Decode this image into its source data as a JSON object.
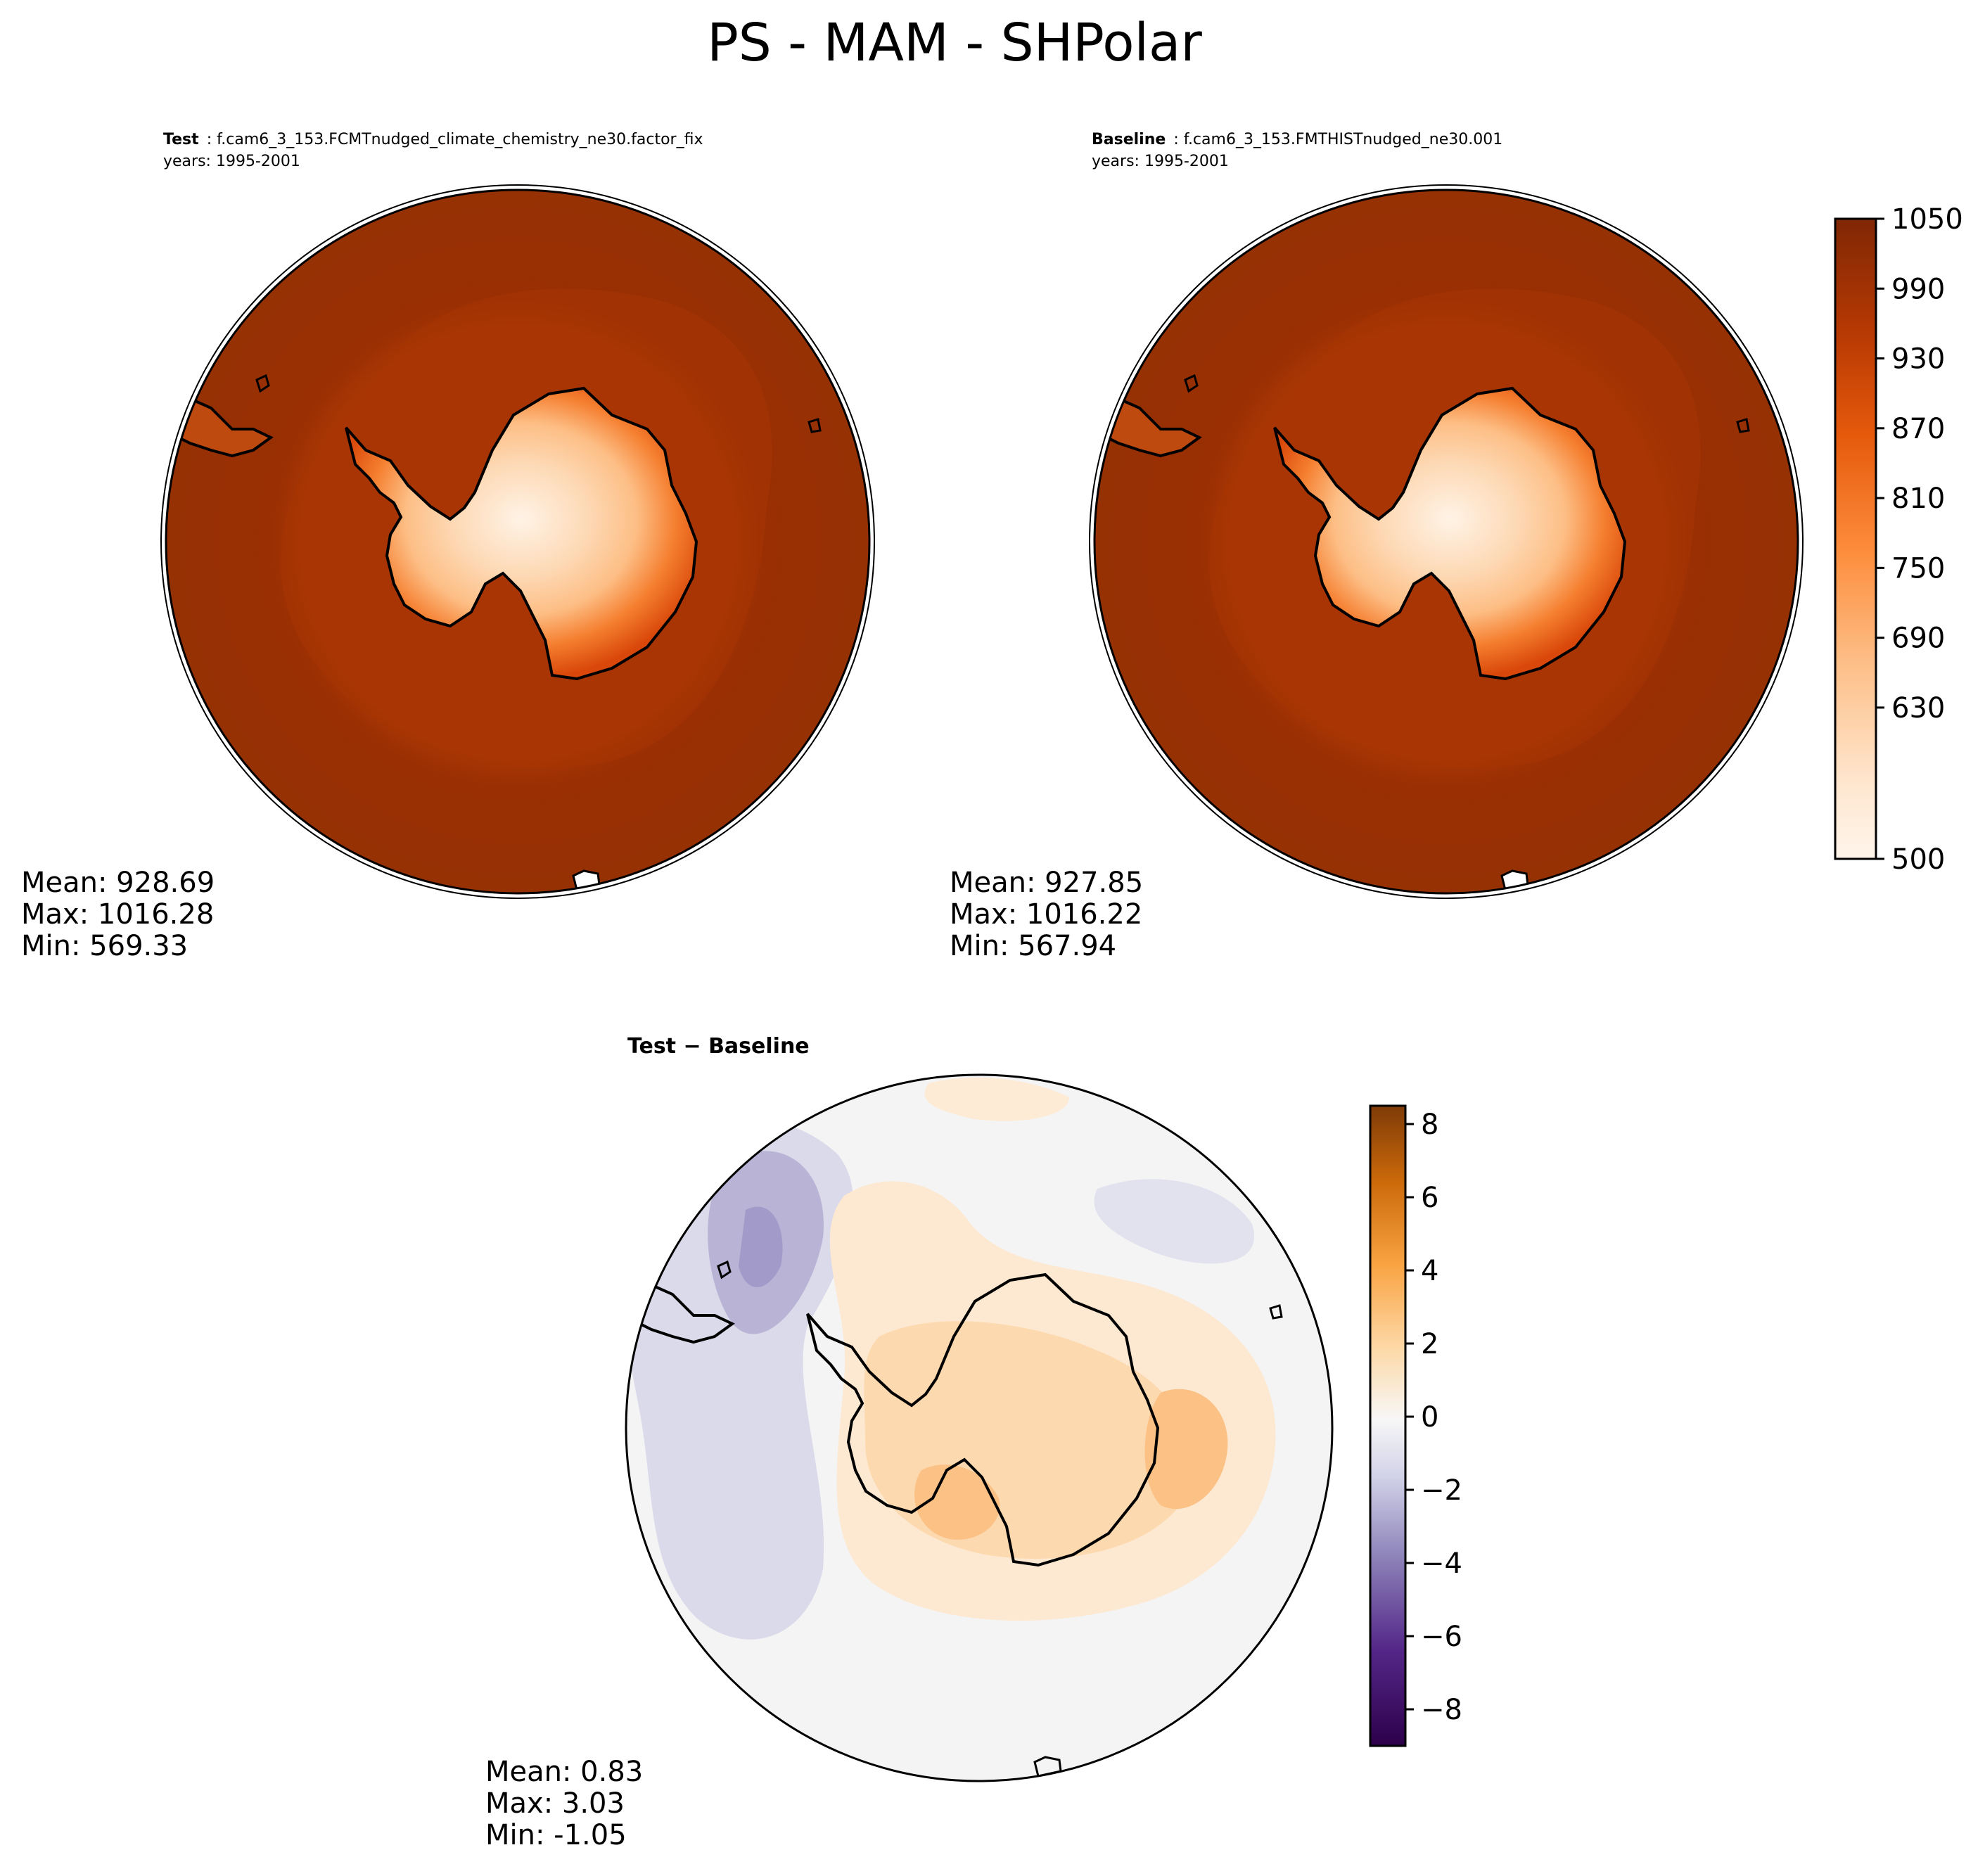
{
  "figure": {
    "title": "PS - MAM - SHPolar"
  },
  "panels": {
    "test": {
      "label": "Test",
      "case": "f.cam6_3_153.FCMTnudged_climate_chemistry_ne30.factor_fix",
      "years": "years: 1995-2001",
      "mean": "Mean: 928.69",
      "max": "Max: 1016.28",
      "min": "Min: 569.33"
    },
    "baseline": {
      "label": "Baseline",
      "case": "f.cam6_3_153.FMTHISTnudged_ne30.001",
      "years": "years: 1995-2001",
      "mean": "Mean: 927.85",
      "max": "Max: 1016.22",
      "min": "Min: 567.94"
    },
    "difference": {
      "title_left": "Test",
      "title_sep": " − ",
      "title_right": "Baseline",
      "mean": "Mean:  0.83",
      "max": "Max:  3.03",
      "min": "Min: -1.05"
    }
  },
  "colorbars": {
    "main": {
      "colormap": "Oranges",
      "range": [
        500,
        1050
      ],
      "ticks": [
        "1050",
        "990",
        "930",
        "870",
        "810",
        "750",
        "690",
        "630",
        "500"
      ],
      "colors_low_to_high": [
        "#fff5eb",
        "#fee6ce",
        "#fdd4ab",
        "#fdbe85",
        "#fda35c",
        "#fd8d3c",
        "#f57321",
        "#e95c0d",
        "#d94801",
        "#c03c02",
        "#a63603",
        "#963104",
        "#872c04",
        "#7f2704"
      ]
    },
    "diff": {
      "colormap": "PuOr_r",
      "range": [
        -9,
        8.5
      ],
      "ticks": [
        "8",
        "6",
        "4",
        "2",
        "0",
        "−2",
        "−4",
        "−6",
        "−8"
      ],
      "colors_low_to_high": [
        "#2d004b",
        "#542788",
        "#8073ac",
        "#b2abd2",
        "#d8daeb",
        "#f7f7f7",
        "#fee0b6",
        "#fdb863",
        "#e08214",
        "#b35806",
        "#7f3b08"
      ]
    }
  }
}
